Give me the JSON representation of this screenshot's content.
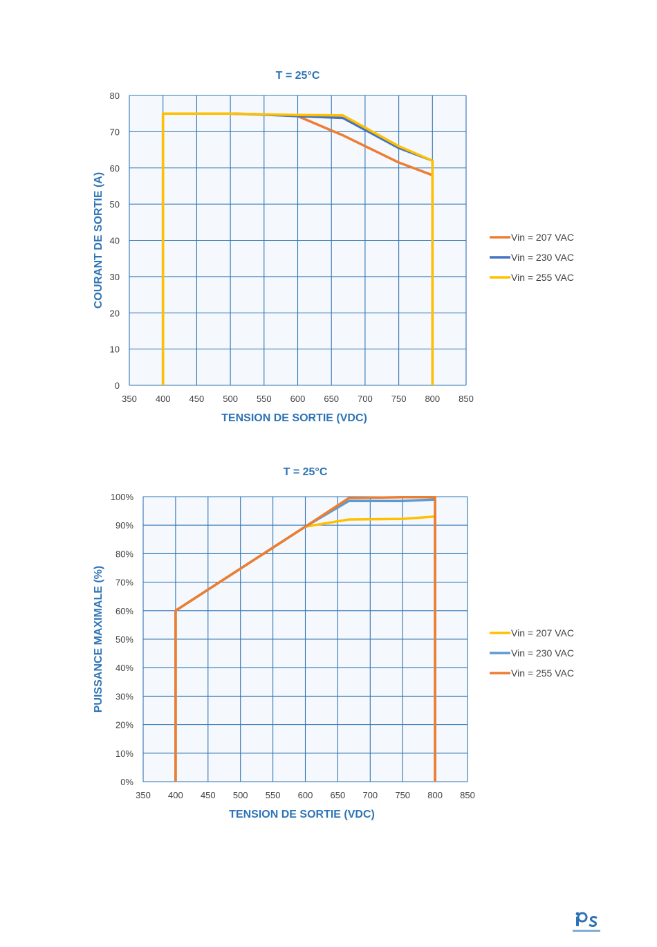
{
  "colors": {
    "orange": "#ed7d31",
    "blue": "#4472c4",
    "lightblue": "#5b9bd5",
    "yellow": "#ffc000",
    "grid": "#2e74b5",
    "plotbg": "#f5f8fc"
  },
  "chart_data": [
    {
      "type": "line",
      "title": "T = 25°C",
      "xlabel": "TENSION DE SORTIE (VDC)",
      "ylabel": "COURANT DE SORTIE (A)",
      "xlim": [
        350,
        850
      ],
      "ylim": [
        0,
        80
      ],
      "x_ticks": [
        "350",
        "400",
        "450",
        "500",
        "550",
        "600",
        "650",
        "700",
        "750",
        "800",
        "850"
      ],
      "y_ticks": [
        "0",
        "10",
        "20",
        "30",
        "40",
        "50",
        "60",
        "70",
        "80"
      ],
      "grid": true,
      "legend": "right",
      "series": [
        {
          "name": "Vin = 207 VAC",
          "color": "#ed7d31",
          "points": [
            [
              400,
              0
            ],
            [
              400,
              75
            ],
            [
              500,
              75
            ],
            [
              550,
              74.8
            ],
            [
              600,
              74.3
            ],
            [
              667,
              69
            ],
            [
              750,
              61.5
            ],
            [
              800,
              58
            ],
            [
              800,
              0
            ]
          ]
        },
        {
          "name": "Vin = 230 VAC",
          "color": "#4472c4",
          "points": [
            [
              400,
              0
            ],
            [
              400,
              75
            ],
            [
              500,
              75
            ],
            [
              550,
              74.7
            ],
            [
              600,
              74.3
            ],
            [
              667,
              73.8
            ],
            [
              750,
              65.5
            ],
            [
              800,
              62
            ],
            [
              800,
              0
            ]
          ]
        },
        {
          "name": "Vin = 255 VAC",
          "color": "#ffc000",
          "points": [
            [
              400,
              0
            ],
            [
              400,
              75
            ],
            [
              500,
              75
            ],
            [
              550,
              74.8
            ],
            [
              600,
              74.6
            ],
            [
              667,
              74.5
            ],
            [
              750,
              66
            ],
            [
              800,
              62
            ],
            [
              800,
              0
            ]
          ]
        }
      ]
    },
    {
      "type": "line",
      "title": "T = 25°C",
      "xlabel": "TENSION DE SORTIE (VDC)",
      "ylabel": "PUISSANCE MAXIMALE (%)",
      "xlim": [
        350,
        850
      ],
      "ylim": [
        0,
        100
      ],
      "x_ticks": [
        "350",
        "400",
        "450",
        "500",
        "550",
        "600",
        "650",
        "700",
        "750",
        "800",
        "850"
      ],
      "y_ticks": [
        "0%",
        "10%",
        "20%",
        "30%",
        "40%",
        "50%",
        "60%",
        "70%",
        "80%",
        "90%",
        "100%"
      ],
      "grid": true,
      "legend": "right",
      "series": [
        {
          "name": "Vin = 207 VAC",
          "color": "#ffc000",
          "points": [
            [
              400,
              0
            ],
            [
              400,
              60
            ],
            [
              600,
              89.5
            ],
            [
              667,
              92
            ],
            [
              750,
              92.2
            ],
            [
              800,
              93
            ],
            [
              800,
              0
            ]
          ]
        },
        {
          "name": "Vin = 230 VAC",
          "color": "#5b9bd5",
          "points": [
            [
              400,
              0
            ],
            [
              400,
              60
            ],
            [
              600,
              89.5
            ],
            [
              667,
              98.5
            ],
            [
              750,
              98.5
            ],
            [
              800,
              99
            ],
            [
              800,
              0
            ]
          ]
        },
        {
          "name": "Vin = 255 VAC",
          "color": "#ed7d31",
          "points": [
            [
              400,
              0
            ],
            [
              400,
              60
            ],
            [
              600,
              89.5
            ],
            [
              667,
              99.5
            ],
            [
              750,
              99.8
            ],
            [
              800,
              99.8
            ],
            [
              800,
              0
            ]
          ]
        }
      ]
    }
  ]
}
